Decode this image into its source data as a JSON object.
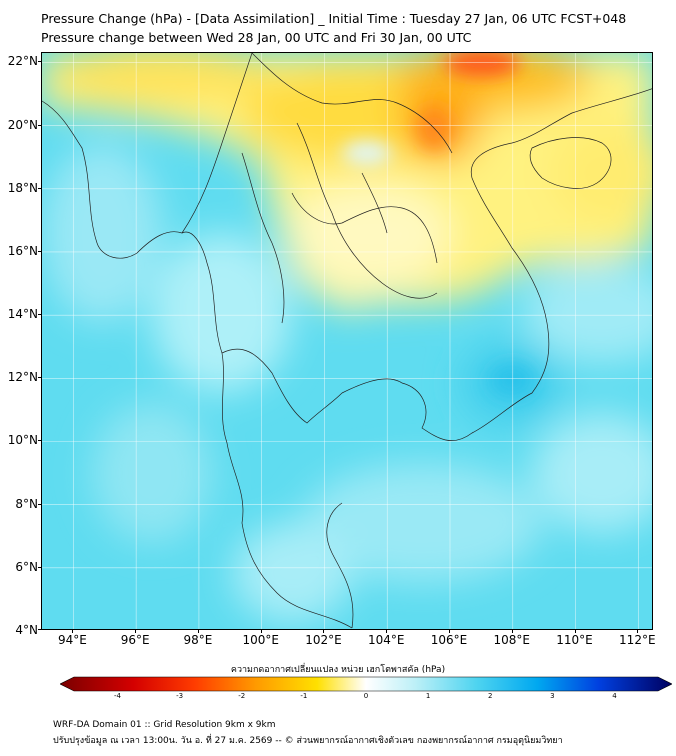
{
  "title_line1": "Pressure Change (hPa) - [Data Assimilation] _ Initial Time : Tuesday 27 Jan, 06 UTC FCST+048",
  "title_line2": "Pressure change between Wed 28 Jan, 00 UTC and Fri 30 Jan, 00 UTC",
  "map": {
    "lon_min": 93,
    "lon_max": 112.5,
    "lat_min": 4,
    "lat_max": 22.3,
    "lat_labels": [
      "22°N",
      "20°N",
      "18°N",
      "16°N",
      "14°N",
      "12°N",
      "10°N",
      "8°N",
      "6°N",
      "4°N"
    ],
    "lat_values": [
      22,
      20,
      18,
      16,
      14,
      12,
      10,
      8,
      6,
      4
    ],
    "lon_labels": [
      "94°E",
      "96°E",
      "98°E",
      "100°E",
      "102°E",
      "104°E",
      "106°E",
      "108°E",
      "110°E",
      "112°E"
    ],
    "lon_values": [
      94,
      96,
      98,
      100,
      102,
      104,
      106,
      108,
      110,
      112
    ],
    "colors": {
      "ocean_cyan": "#5fdcf0",
      "pale_cyan": "#bdf0f7",
      "yellow": "#fff080",
      "orange": "#ffb400",
      "red": "#ff5a1e"
    }
  },
  "colorbar": {
    "label": "ความกดอากาศเปลี่ยนแปลง หน่วย เฮกโตพาสคัล (hPa)",
    "ticks": [
      "-4",
      "-3",
      "-2",
      "-1",
      "0",
      "1",
      "2",
      "3",
      "4"
    ],
    "tick_values": [
      -4,
      -3,
      -2,
      -1,
      0,
      1,
      2,
      3,
      4
    ]
  },
  "footer_line1": "WRF-DA Domain 01 :: Grid Resolution 9km x 9km",
  "footer_line2": "ปรับปรุงข้อมูล ณ เวลา 13:00น. วัน อ. ที่ 27 ม.ค. 2569 -- © ส่วนพยากรณ์อากาศเชิงตัวเลข กองพยากรณ์อากาศ กรมอุตุนิยมวิทยา"
}
